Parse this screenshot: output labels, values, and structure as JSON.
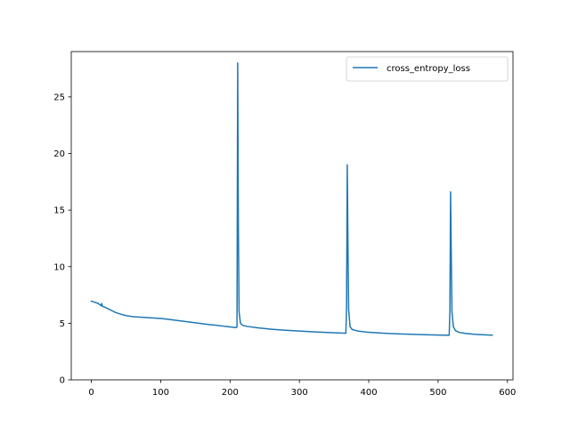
{
  "chart_data": {
    "type": "line",
    "title": "",
    "xlabel": "",
    "ylabel": "",
    "xlim": [
      -29,
      608
    ],
    "ylim": [
      0,
      29
    ],
    "x_ticks": [
      0,
      100,
      200,
      300,
      400,
      500,
      600
    ],
    "y_ticks": [
      0,
      5,
      10,
      15,
      20,
      25
    ],
    "x_tick_labels": [
      "0",
      "100",
      "200",
      "300",
      "400",
      "500",
      "600"
    ],
    "y_tick_labels": [
      "0",
      "5",
      "10",
      "15",
      "20",
      "25"
    ],
    "grid": false,
    "legend": {
      "position": "top-right",
      "entries": [
        "cross_entropy_loss"
      ]
    },
    "series": [
      {
        "name": "cross_entropy_loss",
        "color": "#1f77b4",
        "points": [
          [
            0,
            6.95
          ],
          [
            5,
            6.85
          ],
          [
            10,
            6.75
          ],
          [
            14,
            6.55
          ],
          [
            15,
            6.75
          ],
          [
            16,
            6.5
          ],
          [
            20,
            6.4
          ],
          [
            25,
            6.25
          ],
          [
            30,
            6.1
          ],
          [
            35,
            5.95
          ],
          [
            40,
            5.85
          ],
          [
            45,
            5.75
          ],
          [
            50,
            5.68
          ],
          [
            60,
            5.58
          ],
          [
            70,
            5.54
          ],
          [
            80,
            5.5
          ],
          [
            90,
            5.46
          ],
          [
            100,
            5.42
          ],
          [
            110,
            5.35
          ],
          [
            120,
            5.28
          ],
          [
            130,
            5.2
          ],
          [
            140,
            5.12
          ],
          [
            150,
            5.04
          ],
          [
            160,
            4.96
          ],
          [
            170,
            4.88
          ],
          [
            180,
            4.82
          ],
          [
            190,
            4.75
          ],
          [
            200,
            4.68
          ],
          [
            209,
            4.62
          ],
          [
            210,
            4.7
          ],
          [
            211,
            28.0
          ],
          [
            212,
            13.5
          ],
          [
            213,
            6.0
          ],
          [
            215,
            5.0
          ],
          [
            218,
            4.82
          ],
          [
            225,
            4.72
          ],
          [
            240,
            4.6
          ],
          [
            260,
            4.47
          ],
          [
            280,
            4.38
          ],
          [
            300,
            4.31
          ],
          [
            320,
            4.24
          ],
          [
            340,
            4.19
          ],
          [
            355,
            4.15
          ],
          [
            367,
            4.12
          ],
          [
            368,
            6.5
          ],
          [
            369,
            19.0
          ],
          [
            370,
            12.0
          ],
          [
            371,
            6.2
          ],
          [
            373,
            4.7
          ],
          [
            376,
            4.45
          ],
          [
            385,
            4.3
          ],
          [
            400,
            4.2
          ],
          [
            420,
            4.13
          ],
          [
            440,
            4.07
          ],
          [
            460,
            4.03
          ],
          [
            480,
            3.99
          ],
          [
            500,
            3.96
          ],
          [
            516,
            3.94
          ],
          [
            517,
            6.0
          ],
          [
            518,
            16.6
          ],
          [
            519,
            11.0
          ],
          [
            520,
            6.0
          ],
          [
            522,
            4.7
          ],
          [
            525,
            4.35
          ],
          [
            530,
            4.2
          ],
          [
            540,
            4.1
          ],
          [
            550,
            4.04
          ],
          [
            560,
            4.0
          ],
          [
            570,
            3.97
          ],
          [
            578,
            3.95
          ]
        ]
      }
    ]
  }
}
